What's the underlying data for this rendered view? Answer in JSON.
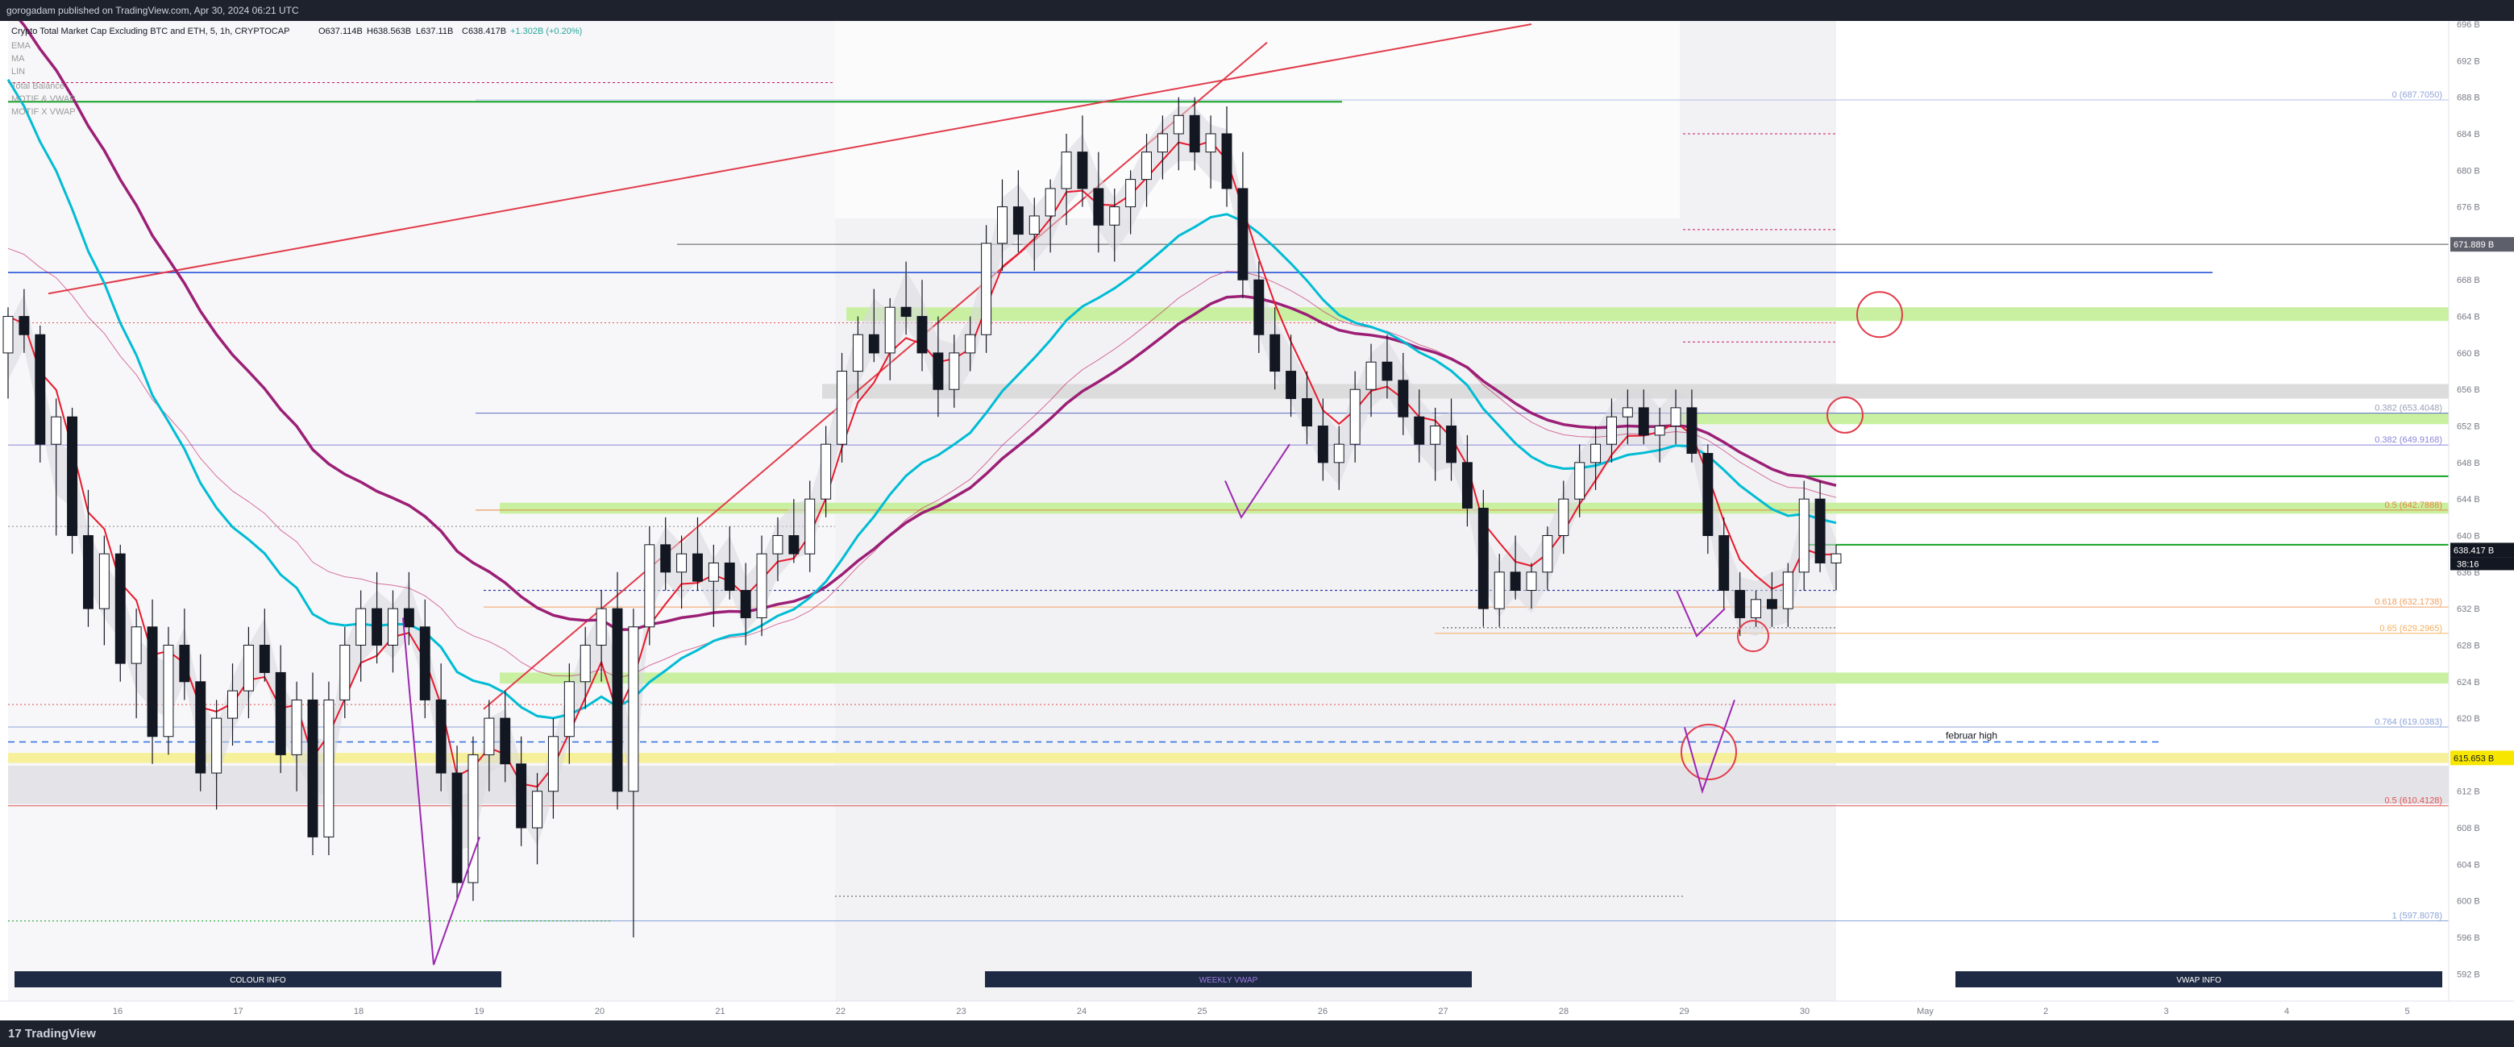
{
  "header": {
    "published_text": "gorogadam published on TradingView.com, Apr 30, 2024 06:21 UTC"
  },
  "footer": {
    "logo_text": "TradingView",
    "logo_glyph": "17"
  },
  "colors": {
    "background": "#ffffff",
    "chrome": "#1e222d",
    "ema_fast": "#e8192c",
    "ema_mid": "#00bcd4",
    "ema_slow": "#9c1f76",
    "support_zone": "#c8f0a0",
    "resistance_line": "#1846d8",
    "level_green": "#13a322"
  },
  "chart_data": {
    "type": "candlestick",
    "title": "Crypto Total Market Cap Excluding BTC and ETH, 5, 1h, CRYPTOCAP",
    "ohlc_readout": {
      "o": "O637.114B",
      "h": "H638.563B",
      "l": "L637.11B",
      "c": "C638.417B",
      "chg": "+1.302B (+0.20%)"
    },
    "indicators": [
      "EMA",
      "MA",
      "LIN",
      "Total Balance",
      "MOTIF & VWAP",
      "MOTIF X VWAP"
    ],
    "ylim": [
      590,
      696
    ],
    "y_ticks": [
      "592 B",
      "596 B",
      "600 B",
      "604 B",
      "608 B",
      "612 B",
      "616 B",
      "620 B",
      "624 B",
      "628 B",
      "632 B",
      "636 B",
      "640 B",
      "644 B",
      "648 B",
      "652 B",
      "656 B",
      "660 B",
      "664 B",
      "668 B",
      "672 B",
      "676 B",
      "680 B",
      "684 B",
      "688 B",
      "692 B",
      "696 B"
    ],
    "x_tick_labels": [
      "16",
      "17",
      "18",
      "19",
      "20",
      "21",
      "22",
      "23",
      "24",
      "25",
      "26",
      "27",
      "28",
      "29",
      "30",
      "May",
      "2",
      "3",
      "4",
      "5"
    ],
    "y_labels_price": [
      {
        "text": "671.889 B",
        "value": 671.889,
        "color": "#5d606b"
      },
      {
        "text": "638.417 B",
        "value": 638.417,
        "color": "#131722"
      },
      {
        "text": "615.653 B",
        "value": 615.653,
        "color": "#f7e600"
      }
    ],
    "countdown": "38:16",
    "fib_levels": [
      {
        "text": "0 (687.7050)",
        "value": 687.705,
        "color": "#90a4d8"
      },
      {
        "text": "0.382 (653.4048)",
        "value": 653.4048,
        "color": "#9a9fb5"
      },
      {
        "text": "0.382 (649.9168)",
        "value": 649.9168,
        "color": "#8c85d8"
      },
      {
        "text": "0.5 (642.7888)",
        "value": 642.7888,
        "color": "#e6873e"
      },
      {
        "text": "0.618 (632.1738)",
        "value": 632.1738,
        "color": "#f0a060"
      },
      {
        "text": "0.65 (629.2965)",
        "value": 629.2965,
        "color": "#f5b060"
      },
      {
        "text": "0.764 (619.0383)",
        "value": 619.0383,
        "color": "#8ba3d8"
      },
      {
        "text": "0.5 (610.4128)",
        "value": 610.4128,
        "color": "#e05050"
      },
      {
        "text": "1 (597.8078)",
        "value": 597.8078,
        "color": "#8ba3d8"
      }
    ],
    "annotations": [
      {
        "text": "februar high",
        "value": 617.4
      }
    ],
    "buttons": [
      "COLOUR INFO",
      "WEEKLY VWAP",
      "VWAP INFO"
    ],
    "last_price": 638.417,
    "candles": [
      [
        660,
        665,
        655,
        664
      ],
      [
        664,
        667,
        660,
        662
      ],
      [
        662,
        663,
        648,
        650
      ],
      [
        650,
        655,
        640,
        653
      ],
      [
        653,
        654,
        638,
        640
      ],
      [
        640,
        645,
        630,
        632
      ],
      [
        632,
        640,
        628,
        638
      ],
      [
        638,
        639,
        624,
        626
      ],
      [
        626,
        632,
        620,
        630
      ],
      [
        630,
        633,
        615,
        618
      ],
      [
        618,
        630,
        616,
        628
      ],
      [
        628,
        632,
        622,
        624
      ],
      [
        624,
        627,
        612,
        614
      ],
      [
        614,
        622,
        610,
        620
      ],
      [
        620,
        626,
        617,
        623
      ],
      [
        623,
        630,
        620,
        628
      ],
      [
        628,
        632,
        624,
        625
      ],
      [
        625,
        628,
        614,
        616
      ],
      [
        616,
        624,
        612,
        622
      ],
      [
        622,
        625,
        605,
        607
      ],
      [
        607,
        624,
        605,
        622
      ],
      [
        622,
        630,
        620,
        628
      ],
      [
        628,
        634,
        624,
        632
      ],
      [
        632,
        636,
        626,
        628
      ],
      [
        628,
        634,
        625,
        632
      ],
      [
        632,
        636,
        628,
        630
      ],
      [
        630,
        633,
        620,
        622
      ],
      [
        622,
        626,
        612,
        614
      ],
      [
        614,
        617,
        600,
        602
      ],
      [
        602,
        618,
        600,
        616
      ],
      [
        616,
        622,
        612,
        620
      ],
      [
        620,
        623,
        613,
        615
      ],
      [
        615,
        618,
        606,
        608
      ],
      [
        608,
        614,
        604,
        612
      ],
      [
        612,
        620,
        609,
        618
      ],
      [
        618,
        626,
        615,
        624
      ],
      [
        624,
        630,
        621,
        628
      ],
      [
        628,
        634,
        624,
        632
      ],
      [
        632,
        636,
        610,
        612
      ],
      [
        612,
        632,
        596,
        630
      ],
      [
        630,
        641,
        628,
        639
      ],
      [
        639,
        642,
        634,
        636
      ],
      [
        636,
        640,
        632,
        638
      ],
      [
        638,
        642,
        634,
        635
      ],
      [
        635,
        639,
        630,
        637
      ],
      [
        637,
        641,
        633,
        634
      ],
      [
        634,
        637,
        628,
        631
      ],
      [
        631,
        640,
        629,
        638
      ],
      [
        638,
        642,
        635,
        640
      ],
      [
        640,
        644,
        637,
        638
      ],
      [
        638,
        646,
        636,
        644
      ],
      [
        644,
        652,
        642,
        650
      ],
      [
        650,
        660,
        648,
        658
      ],
      [
        658,
        664,
        655,
        662
      ],
      [
        662,
        667,
        659,
        660
      ],
      [
        660,
        666,
        657,
        665
      ],
      [
        665,
        670,
        662,
        664
      ],
      [
        664,
        668,
        658,
        660
      ],
      [
        660,
        664,
        653,
        656
      ],
      [
        656,
        662,
        654,
        660
      ],
      [
        660,
        664,
        658,
        662
      ],
      [
        662,
        674,
        660,
        672
      ],
      [
        672,
        679,
        669,
        676
      ],
      [
        676,
        680,
        671,
        673
      ],
      [
        673,
        677,
        669,
        675
      ],
      [
        675,
        679,
        671,
        678
      ],
      [
        678,
        684,
        674,
        682
      ],
      [
        682,
        686,
        676,
        678
      ],
      [
        678,
        682,
        671,
        674
      ],
      [
        674,
        678,
        670,
        676
      ],
      [
        676,
        680,
        673,
        679
      ],
      [
        679,
        684,
        676,
        682
      ],
      [
        682,
        686,
        679,
        684
      ],
      [
        684,
        688,
        680,
        686
      ],
      [
        686,
        688,
        680,
        682
      ],
      [
        682,
        686,
        678,
        684
      ],
      [
        684,
        687,
        676,
        678
      ],
      [
        678,
        682,
        666,
        668
      ],
      [
        668,
        670,
        660,
        662
      ],
      [
        662,
        665,
        656,
        658
      ],
      [
        658,
        662,
        653,
        655
      ],
      [
        655,
        658,
        650,
        652
      ],
      [
        652,
        655,
        646,
        648
      ],
      [
        648,
        652,
        645,
        650
      ],
      [
        650,
        658,
        648,
        656
      ],
      [
        656,
        661,
        653,
        659
      ],
      [
        659,
        662,
        655,
        657
      ],
      [
        657,
        660,
        651,
        653
      ],
      [
        653,
        656,
        648,
        650
      ],
      [
        650,
        654,
        646,
        652
      ],
      [
        652,
        655,
        646,
        648
      ],
      [
        648,
        651,
        641,
        643
      ],
      [
        643,
        645,
        630,
        632
      ],
      [
        632,
        638,
        630,
        636
      ],
      [
        636,
        640,
        633,
        634
      ],
      [
        634,
        637,
        632,
        636
      ],
      [
        636,
        641,
        634,
        640
      ],
      [
        640,
        646,
        638,
        644
      ],
      [
        644,
        650,
        642,
        648
      ],
      [
        648,
        652,
        645,
        650
      ],
      [
        650,
        655,
        648,
        653
      ],
      [
        653,
        656,
        650,
        654
      ],
      [
        654,
        656,
        650,
        651
      ],
      [
        651,
        654,
        648,
        652
      ],
      [
        652,
        656,
        650,
        654
      ],
      [
        654,
        656,
        648,
        649
      ],
      [
        649,
        650,
        638,
        640
      ],
      [
        640,
        642,
        632,
        634
      ],
      [
        634,
        636,
        629,
        631
      ],
      [
        631,
        634,
        630,
        633
      ],
      [
        633,
        636,
        630,
        632
      ],
      [
        632,
        637,
        630,
        636
      ],
      [
        636,
        646,
        634,
        644
      ],
      [
        644,
        646,
        636,
        637
      ],
      [
        637,
        639,
        634,
        638
      ]
    ]
  }
}
